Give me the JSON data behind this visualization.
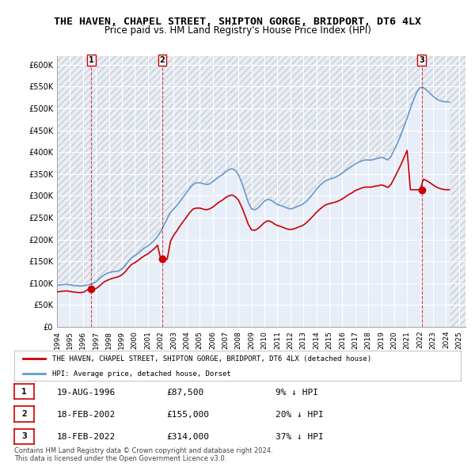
{
  "title": "THE HAVEN, CHAPEL STREET, SHIPTON GORGE, BRIDPORT, DT6 4LX",
  "subtitle": "Price paid vs. HM Land Registry's House Price Index (HPI)",
  "ylabel": "",
  "ylim": [
    0,
    620000
  ],
  "yticks": [
    0,
    50000,
    100000,
    150000,
    200000,
    250000,
    300000,
    350000,
    400000,
    450000,
    500000,
    550000,
    600000
  ],
  "background_color": "#ffffff",
  "plot_background": "#e8eef8",
  "grid_color": "#ffffff",
  "hpi_color": "#6699cc",
  "price_color": "#cc0000",
  "legend_label_price": "THE HAVEN, CHAPEL STREET, SHIPTON GORGE, BRIDPORT, DT6 4LX (detached house)",
  "legend_label_hpi": "HPI: Average price, detached house, Dorset",
  "sales": [
    {
      "label": "1",
      "date_num": 1996.64,
      "price": 87500
    },
    {
      "label": "2",
      "date_num": 2002.12,
      "price": 155000
    },
    {
      "label": "3",
      "date_num": 2022.12,
      "price": 314000
    }
  ],
  "sale_table": [
    {
      "num": "1",
      "date": "19-AUG-1996",
      "price": "£87,500",
      "hpi": "9% ↓ HPI"
    },
    {
      "num": "2",
      "date": "18-FEB-2002",
      "price": "£155,000",
      "hpi": "20% ↓ HPI"
    },
    {
      "num": "3",
      "date": "18-FEB-2022",
      "price": "£314,000",
      "hpi": "37% ↓ HPI"
    }
  ],
  "footnote": "Contains HM Land Registry data © Crown copyright and database right 2024.\nThis data is licensed under the Open Government Licence v3.0.",
  "hpi_data": {
    "years": [
      1994.0,
      1994.25,
      1994.5,
      1994.75,
      1995.0,
      1995.25,
      1995.5,
      1995.75,
      1996.0,
      1996.25,
      1996.5,
      1996.75,
      1997.0,
      1997.25,
      1997.5,
      1997.75,
      1998.0,
      1998.25,
      1998.5,
      1998.75,
      1999.0,
      1999.25,
      1999.5,
      1999.75,
      2000.0,
      2000.25,
      2000.5,
      2000.75,
      2001.0,
      2001.25,
      2001.5,
      2001.75,
      2002.0,
      2002.25,
      2002.5,
      2002.75,
      2003.0,
      2003.25,
      2003.5,
      2003.75,
      2004.0,
      2004.25,
      2004.5,
      2004.75,
      2005.0,
      2005.25,
      2005.5,
      2005.75,
      2006.0,
      2006.25,
      2006.5,
      2006.75,
      2007.0,
      2007.25,
      2007.5,
      2007.75,
      2008.0,
      2008.25,
      2008.5,
      2008.75,
      2009.0,
      2009.25,
      2009.5,
      2009.75,
      2010.0,
      2010.25,
      2010.5,
      2010.75,
      2011.0,
      2011.25,
      2011.5,
      2011.75,
      2012.0,
      2012.25,
      2012.5,
      2012.75,
      2013.0,
      2013.25,
      2013.5,
      2013.75,
      2014.0,
      2014.25,
      2014.5,
      2014.75,
      2015.0,
      2015.25,
      2015.5,
      2015.75,
      2016.0,
      2016.25,
      2016.5,
      2016.75,
      2017.0,
      2017.25,
      2017.5,
      2017.75,
      2018.0,
      2018.25,
      2018.5,
      2018.75,
      2019.0,
      2019.25,
      2019.5,
      2019.75,
      2020.0,
      2020.25,
      2020.5,
      2020.75,
      2021.0,
      2021.25,
      2021.5,
      2021.75,
      2022.0,
      2022.25,
      2022.5,
      2022.75,
      2023.0,
      2023.25,
      2023.5,
      2023.75,
      2024.0,
      2024.25
    ],
    "values": [
      95000,
      96000,
      97000,
      97500,
      96000,
      95000,
      94000,
      93500,
      94000,
      95000,
      97000,
      99000,
      103000,
      110000,
      116000,
      121000,
      124000,
      126000,
      127000,
      128000,
      132000,
      140000,
      150000,
      158000,
      163000,
      168000,
      175000,
      181000,
      185000,
      191000,
      198000,
      207000,
      218000,
      233000,
      248000,
      262000,
      270000,
      278000,
      288000,
      298000,
      308000,
      318000,
      326000,
      330000,
      330000,
      328000,
      326000,
      327000,
      332000,
      338000,
      344000,
      348000,
      355000,
      360000,
      362000,
      358000,
      348000,
      330000,
      308000,
      285000,
      270000,
      268000,
      272000,
      280000,
      288000,
      292000,
      290000,
      285000,
      280000,
      278000,
      275000,
      272000,
      270000,
      272000,
      275000,
      278000,
      282000,
      288000,
      296000,
      305000,
      315000,
      323000,
      330000,
      335000,
      338000,
      340000,
      343000,
      347000,
      352000,
      358000,
      363000,
      368000,
      373000,
      377000,
      380000,
      382000,
      382000,
      382000,
      384000,
      386000,
      388000,
      386000,
      382000,
      390000,
      405000,
      420000,
      438000,
      458000,
      478000,
      500000,
      520000,
      538000,
      548000,
      548000,
      542000,
      535000,
      528000,
      522000,
      518000,
      516000,
      515000,
      515000
    ]
  },
  "price_data": {
    "years": [
      1994.0,
      1994.25,
      1994.5,
      1994.75,
      1995.0,
      1995.25,
      1995.5,
      1995.75,
      1996.0,
      1996.25,
      1996.5,
      1996.75,
      1997.0,
      1997.25,
      1997.5,
      1997.75,
      1998.0,
      1998.25,
      1998.5,
      1998.75,
      1999.0,
      1999.25,
      1999.5,
      1999.75,
      2000.0,
      2000.25,
      2000.5,
      2000.75,
      2001.0,
      2001.25,
      2001.5,
      2001.75,
      2002.0,
      2002.25,
      2002.5,
      2002.75,
      2003.0,
      2003.25,
      2003.5,
      2003.75,
      2004.0,
      2004.25,
      2004.5,
      2004.75,
      2005.0,
      2005.25,
      2005.5,
      2005.75,
      2006.0,
      2006.25,
      2006.5,
      2006.75,
      2007.0,
      2007.25,
      2007.5,
      2007.75,
      2008.0,
      2008.25,
      2008.5,
      2008.75,
      2009.0,
      2009.25,
      2009.5,
      2009.75,
      2010.0,
      2010.25,
      2010.5,
      2010.75,
      2011.0,
      2011.25,
      2011.5,
      2011.75,
      2012.0,
      2012.25,
      2012.5,
      2012.75,
      2013.0,
      2013.25,
      2013.5,
      2013.75,
      2014.0,
      2014.25,
      2014.5,
      2014.75,
      2015.0,
      2015.25,
      2015.5,
      2015.75,
      2016.0,
      2016.25,
      2016.5,
      2016.75,
      2017.0,
      2017.25,
      2017.5,
      2017.75,
      2018.0,
      2018.25,
      2018.5,
      2018.75,
      2019.0,
      2019.25,
      2019.5,
      2019.75,
      2020.0,
      2020.25,
      2020.5,
      2020.75,
      2021.0,
      2021.25,
      2021.5,
      2021.75,
      2022.0,
      2022.25,
      2022.5,
      2022.75,
      2023.0,
      2023.25,
      2023.5,
      2023.75,
      2024.0,
      2024.25
    ],
    "values": [
      80000,
      81000,
      82000,
      82500,
      81000,
      80000,
      79000,
      78500,
      79000,
      83000,
      87500,
      87500,
      87500,
      93000,
      100000,
      105000,
      108000,
      111000,
      113000,
      115000,
      119000,
      126000,
      135000,
      143000,
      147000,
      152000,
      158000,
      163000,
      167000,
      173000,
      179000,
      187000,
      155000,
      155000,
      155000,
      196000,
      210000,
      220000,
      232000,
      242000,
      252000,
      262000,
      270000,
      272000,
      272000,
      270000,
      268000,
      270000,
      274000,
      280000,
      286000,
      290000,
      296000,
      300000,
      302000,
      298000,
      290000,
      274000,
      255000,
      235000,
      222000,
      221000,
      225000,
      232000,
      239000,
      243000,
      241000,
      236000,
      232000,
      230000,
      227000,
      224000,
      223000,
      224000,
      227000,
      230000,
      233000,
      239000,
      246000,
      254000,
      262000,
      269000,
      275000,
      280000,
      282000,
      284000,
      286000,
      289000,
      293000,
      298000,
      303000,
      307000,
      312000,
      315000,
      318000,
      320000,
      320000,
      320000,
      322000,
      323000,
      325000,
      323000,
      319000,
      326000,
      340000,
      355000,
      370000,
      387000,
      404000,
      314000,
      314000,
      314000,
      314000,
      338000,
      335000,
      330000,
      325000,
      320000,
      317000,
      315000,
      314000,
      314000
    ]
  }
}
